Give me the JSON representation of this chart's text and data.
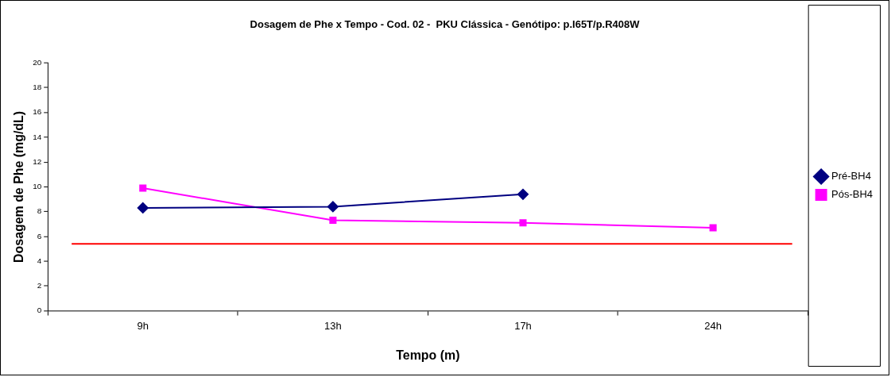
{
  "chart_data": {
    "type": "line",
    "title": "Dosagem de Phe x Tempo - Cod. 02 -  PKU Clássica - Genótipo: p.I65T/p.R408W",
    "xlabel": "Tempo (m)",
    "ylabel": "Dosagem de Phe (mg/dL)",
    "categories": [
      "9h",
      "13h",
      "17h",
      "24h"
    ],
    "series": [
      {
        "name": "Pré-BH4",
        "color": "#000080",
        "marker": "diamond",
        "values": [
          8.3,
          8.4,
          9.4,
          null
        ]
      },
      {
        "name": "Pós-BH4",
        "color": "#ff00ff",
        "marker": "square",
        "values": [
          9.9,
          7.3,
          7.1,
          6.7
        ]
      }
    ],
    "ylim": [
      0,
      20
    ],
    "yticks": [
      0,
      2,
      4,
      6,
      8,
      10,
      12,
      14,
      16,
      18,
      20
    ],
    "grid": false,
    "legend": "right",
    "ref_lines": [
      {
        "axis": "y",
        "value": 5.4,
        "color": "#ff0000"
      }
    ]
  }
}
